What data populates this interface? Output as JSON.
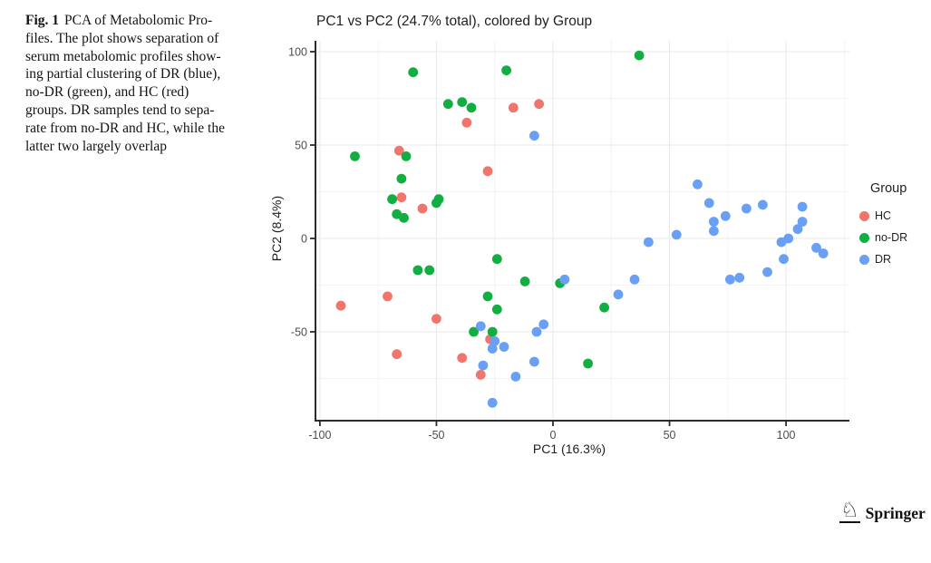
{
  "caption": {
    "label": "Fig. 1",
    "lines": [
      "PCA of Metabolomic Pro-",
      "files. The plot shows separation of",
      "serum metabolomic profiles show-",
      "ing partial clustering of DR (blue),",
      "no-DR (green), and HC (red)",
      "groups. DR samples tend to sepa-",
      "rate from no-DR and HC, while the",
      "latter two largely overlap"
    ]
  },
  "chart_data": {
    "type": "scatter",
    "title": "PC1 vs PC2 (24.7% total), colored by Group",
    "xlabel": "PC1 (16.3%)",
    "ylabel": "PC2 (8.4%)",
    "xlim": [
      -102,
      127
    ],
    "ylim": [
      -97,
      103
    ],
    "xticks": [
      -100,
      -50,
      0,
      50,
      100
    ],
    "yticks": [
      100,
      50,
      0,
      -50
    ],
    "grid": true,
    "legend_title": "Group",
    "legend_position": "right",
    "series": [
      {
        "name": "HC",
        "color": "#F2756C",
        "points": [
          [
            -66,
            47
          ],
          [
            -37,
            62
          ],
          [
            -28,
            36
          ],
          [
            -17,
            70
          ],
          [
            -6,
            72
          ],
          [
            -65,
            22
          ],
          [
            -56,
            16
          ],
          [
            -71,
            -31
          ],
          [
            -91,
            -36
          ],
          [
            -50,
            -43
          ],
          [
            -27,
            -54
          ],
          [
            -67,
            -62
          ],
          [
            -39,
            -64
          ],
          [
            -31,
            -73
          ]
        ]
      },
      {
        "name": "no-DR",
        "color": "#12AE42",
        "points": [
          [
            -60,
            89
          ],
          [
            -20,
            90
          ],
          [
            37,
            98
          ],
          [
            -45,
            72
          ],
          [
            -39,
            73
          ],
          [
            -35,
            70
          ],
          [
            -85,
            44
          ],
          [
            -63,
            44
          ],
          [
            -65,
            32
          ],
          [
            -69,
            21
          ],
          [
            -67,
            13
          ],
          [
            -64,
            11
          ],
          [
            -50,
            19
          ],
          [
            -49,
            21
          ],
          [
            -58,
            -17
          ],
          [
            -53,
            -17
          ],
          [
            -24,
            -11
          ],
          [
            -28,
            -31
          ],
          [
            -12,
            -23
          ],
          [
            3,
            -24
          ],
          [
            22,
            -37
          ],
          [
            -24,
            -38
          ],
          [
            -34,
            -50
          ],
          [
            -26,
            -50
          ],
          [
            15,
            -67
          ]
        ]
      },
      {
        "name": "DR",
        "color": "#699FF5",
        "points": [
          [
            -8,
            55
          ],
          [
            62,
            29
          ],
          [
            67,
            19
          ],
          [
            74,
            12
          ],
          [
            83,
            16
          ],
          [
            90,
            18
          ],
          [
            107,
            17
          ],
          [
            69,
            9
          ],
          [
            69,
            4
          ],
          [
            107,
            9
          ],
          [
            105,
            5
          ],
          [
            53,
            2
          ],
          [
            41,
            -2
          ],
          [
            98,
            -2
          ],
          [
            101,
            0
          ],
          [
            113,
            -5
          ],
          [
            116,
            -8
          ],
          [
            99,
            -11
          ],
          [
            92,
            -18
          ],
          [
            76,
            -22
          ],
          [
            80,
            -21
          ],
          [
            5,
            -22
          ],
          [
            35,
            -22
          ],
          [
            28,
            -30
          ],
          [
            -31,
            -47
          ],
          [
            -4,
            -46
          ],
          [
            -7,
            -50
          ],
          [
            -25,
            -55
          ],
          [
            -26,
            -59
          ],
          [
            -21,
            -58
          ],
          [
            -8,
            -66
          ],
          [
            -30,
            -68
          ],
          [
            -16,
            -74
          ],
          [
            -26,
            -88
          ]
        ]
      }
    ]
  },
  "branding": {
    "publisher": "Springer",
    "logo_icon": "knight-icon"
  }
}
